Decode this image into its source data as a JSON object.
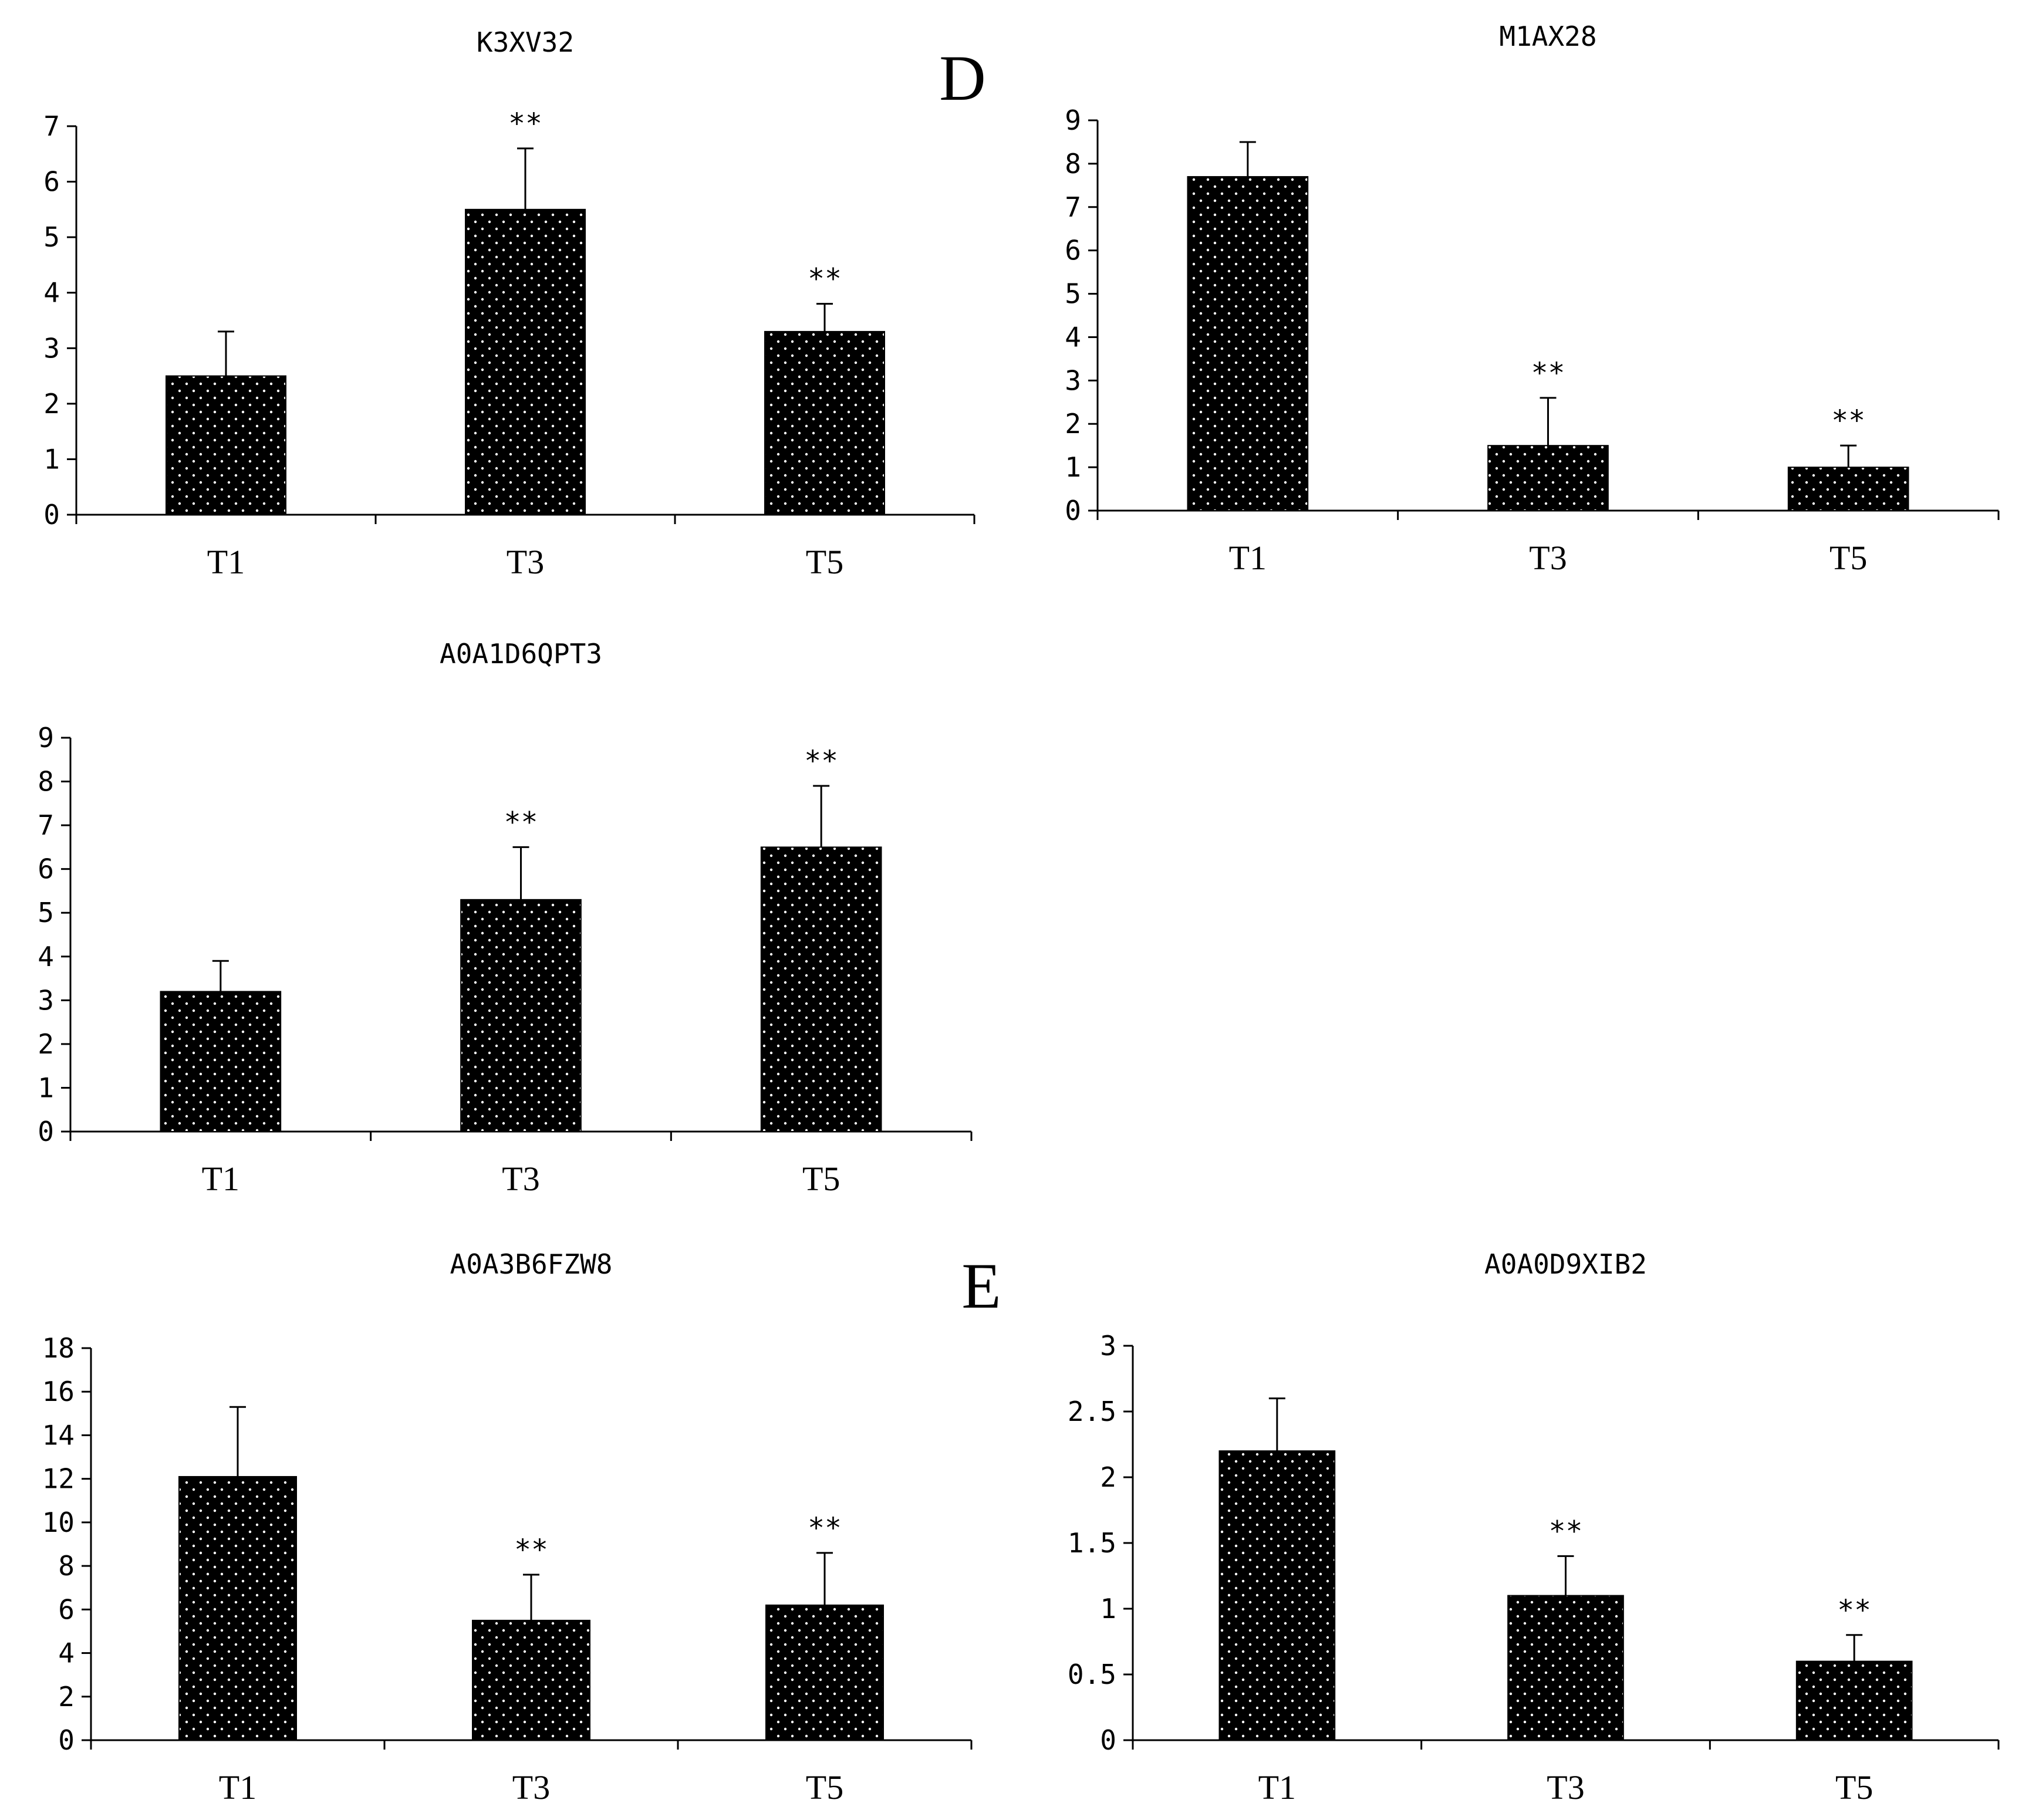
{
  "panel_labels": {
    "d": "D",
    "e": "E"
  },
  "colors": {
    "bar": "#000000",
    "dots": "#ffffff",
    "axis": "#000000"
  },
  "chart_data": [
    {
      "type": "bar",
      "title": "K3XV32",
      "categories": [
        "T1",
        "T3",
        "T5"
      ],
      "values": [
        2.5,
        5.5,
        3.3
      ],
      "errors": [
        0.8,
        1.1,
        0.5
      ],
      "significance": [
        "",
        "**",
        "**"
      ],
      "yticks": [
        "0",
        "1",
        "2",
        "3",
        "4",
        "5",
        "6",
        "7"
      ],
      "ylim": [
        0,
        7
      ],
      "xlabel": "",
      "ylabel": ""
    },
    {
      "type": "bar",
      "title": "M1AX28",
      "categories": [
        "T1",
        "T3",
        "T5"
      ],
      "values": [
        7.7,
        1.5,
        1.0
      ],
      "errors": [
        0.8,
        1.1,
        0.5
      ],
      "significance": [
        "",
        "**",
        "**"
      ],
      "yticks": [
        "0",
        "1",
        "2",
        "3",
        "4",
        "5",
        "6",
        "7",
        "8",
        "9"
      ],
      "ylim": [
        0,
        9
      ],
      "xlabel": "",
      "ylabel": ""
    },
    {
      "type": "bar",
      "title": "A0A1D6QPT3",
      "categories": [
        "T1",
        "T3",
        "T5"
      ],
      "values": [
        3.2,
        5.3,
        6.5
      ],
      "errors": [
        0.7,
        1.2,
        1.4
      ],
      "significance": [
        "",
        "**",
        "**"
      ],
      "yticks": [
        "0",
        "1",
        "2",
        "3",
        "4",
        "5",
        "6",
        "7",
        "8",
        "9"
      ],
      "ylim": [
        0,
        9
      ],
      "xlabel": "",
      "ylabel": ""
    },
    {
      "type": "bar",
      "title": "A0A3B6FZW8",
      "categories": [
        "T1",
        "T3",
        "T5"
      ],
      "values": [
        12.1,
        5.5,
        6.2
      ],
      "errors": [
        3.2,
        2.1,
        2.4
      ],
      "significance": [
        "",
        "**",
        "**"
      ],
      "yticks": [
        "0",
        "2",
        "4",
        "6",
        "8",
        "10",
        "12",
        "14",
        "16",
        "18"
      ],
      "ylim": [
        0,
        18
      ],
      "xlabel": "",
      "ylabel": ""
    },
    {
      "type": "bar",
      "title": "A0A0D9XIB2",
      "categories": [
        "T1",
        "T3",
        "T5"
      ],
      "values": [
        2.2,
        1.1,
        0.6
      ],
      "errors": [
        0.4,
        0.3,
        0.2
      ],
      "significance": [
        "",
        "**",
        "**"
      ],
      "yticks": [
        "0",
        "0.5",
        "1",
        "1.5",
        "2",
        "2.5",
        "3"
      ],
      "ylim": [
        0,
        3
      ],
      "xlabel": "",
      "ylabel": ""
    }
  ]
}
